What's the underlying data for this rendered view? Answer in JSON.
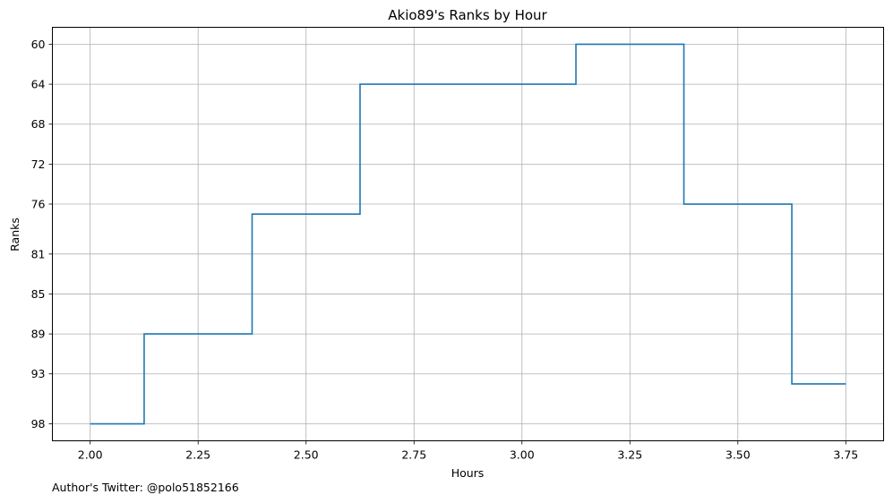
{
  "footer": {
    "credit": "Author's Twitter: @polo51852166"
  },
  "chart_data": {
    "type": "line",
    "step": "mid",
    "title": "Akio89's Ranks by Hour",
    "xlabel": "Hours",
    "ylabel": "Ranks",
    "y_inverted": true,
    "grid": true,
    "line_color": "#1f77b4",
    "xlim": [
      1.9125,
      3.8375
    ],
    "ylim": [
      99.7,
      58.3
    ],
    "x_ticks": [
      "2.00",
      "2.25",
      "2.50",
      "2.75",
      "3.00",
      "3.25",
      "3.50",
      "3.75"
    ],
    "y_ticks": [
      "60",
      "64",
      "68",
      "72",
      "76",
      "81",
      "85",
      "89",
      "93",
      "98"
    ],
    "series": [
      {
        "x": [
          2.0,
          2.25,
          2.5,
          2.75,
          3.0,
          3.25,
          3.5,
          3.75
        ],
        "y": [
          98,
          89,
          77,
          64,
          64,
          60,
          76,
          94
        ]
      }
    ]
  }
}
